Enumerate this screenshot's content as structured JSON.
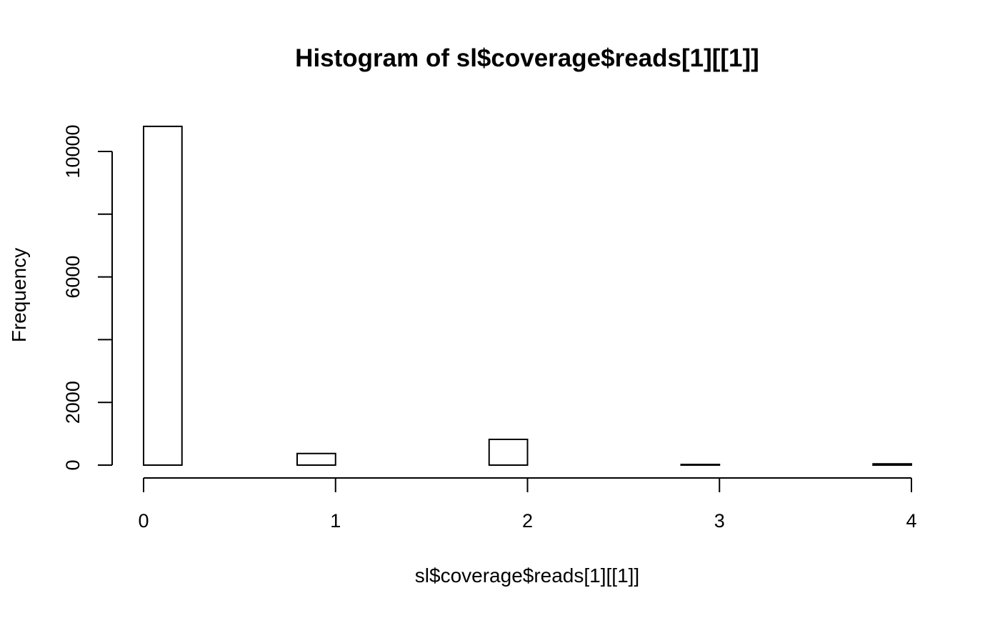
{
  "chart_data": {
    "type": "histogram",
    "title": "Histogram of sl$coverage$reads[1][[1]]",
    "xlabel": "sl$coverage$reads[1][[1]]",
    "ylabel": "Frequency",
    "xlim": [
      0,
      4
    ],
    "ylim": [
      0,
      10800
    ],
    "x_ticks": [
      0,
      1,
      2,
      3,
      4
    ],
    "x_tick_labels": [
      "0",
      "1",
      "2",
      "3",
      "4"
    ],
    "y_ticks": [
      0,
      2000,
      4000,
      6000,
      8000,
      10000
    ],
    "y_tick_labels": [
      "0",
      "2000",
      "",
      "6000",
      "",
      "10000"
    ],
    "bins": [
      {
        "start": 0.0,
        "end": 0.2,
        "count": 10800
      },
      {
        "start": 0.2,
        "end": 0.4,
        "count": 0
      },
      {
        "start": 0.4,
        "end": 0.6,
        "count": 0
      },
      {
        "start": 0.6,
        "end": 0.8,
        "count": 0
      },
      {
        "start": 0.8,
        "end": 1.0,
        "count": 370
      },
      {
        "start": 1.0,
        "end": 1.2,
        "count": 0
      },
      {
        "start": 1.2,
        "end": 1.4,
        "count": 0
      },
      {
        "start": 1.4,
        "end": 1.6,
        "count": 0
      },
      {
        "start": 1.6,
        "end": 1.8,
        "count": 0
      },
      {
        "start": 1.8,
        "end": 2.0,
        "count": 820
      },
      {
        "start": 2.0,
        "end": 2.2,
        "count": 0
      },
      {
        "start": 2.2,
        "end": 2.4,
        "count": 0
      },
      {
        "start": 2.4,
        "end": 2.6,
        "count": 0
      },
      {
        "start": 2.6,
        "end": 2.8,
        "count": 0
      },
      {
        "start": 2.8,
        "end": 3.0,
        "count": 20
      },
      {
        "start": 3.0,
        "end": 3.2,
        "count": 0
      },
      {
        "start": 3.2,
        "end": 3.4,
        "count": 0
      },
      {
        "start": 3.4,
        "end": 3.6,
        "count": 0
      },
      {
        "start": 3.6,
        "end": 3.8,
        "count": 0
      },
      {
        "start": 3.8,
        "end": 4.0,
        "count": 40
      }
    ]
  }
}
